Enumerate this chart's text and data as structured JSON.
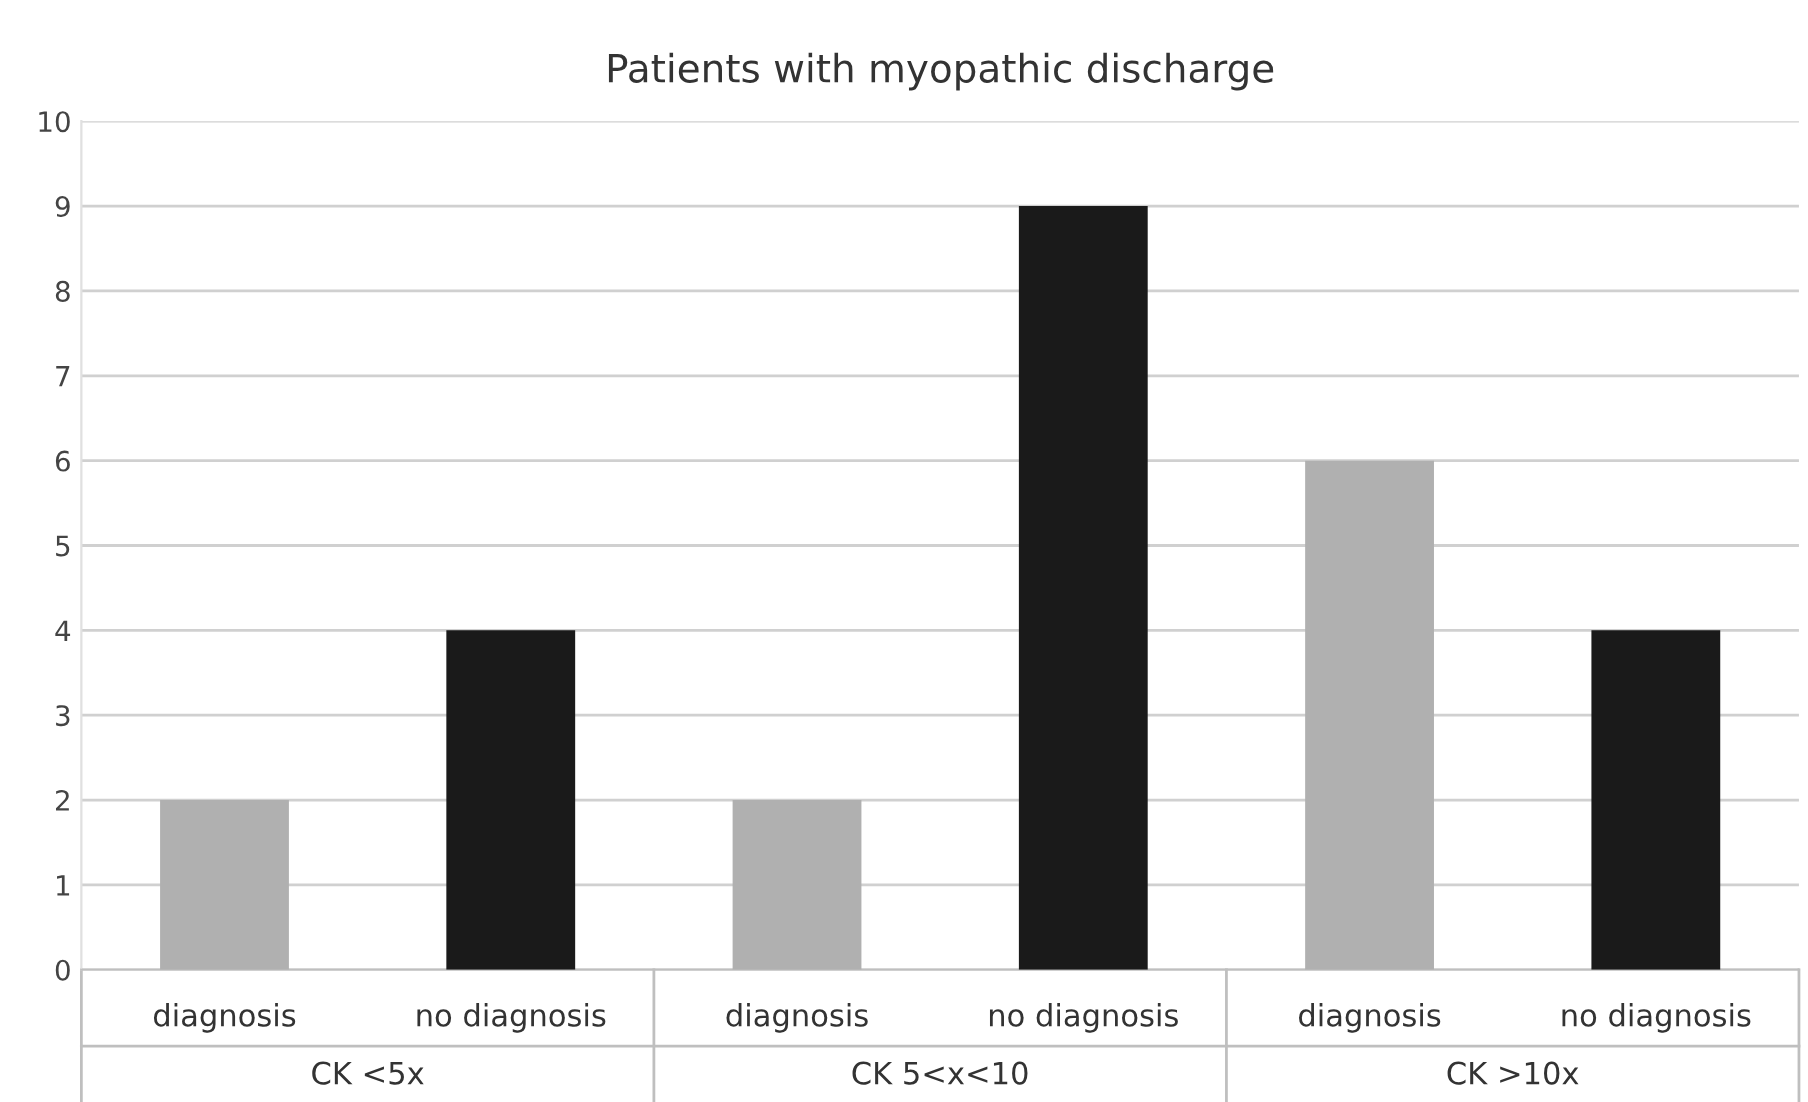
{
  "chart_data": {
    "type": "bar",
    "title": "Patients with myopathic discharge",
    "categories": [
      "diagnosis",
      "no diagnosis",
      "diagnosis",
      "no diagnosis",
      "diagnosis",
      "no diagnosis"
    ],
    "values": [
      2,
      4,
      2,
      9,
      6,
      4
    ],
    "colors": [
      "#b0b0b0",
      "#1a1a1a",
      "#b0b0b0",
      "#1a1a1a",
      "#b0b0b0",
      "#1a1a1a"
    ],
    "annotations": [
      "CK <5x",
      "CK 5<x<10",
      "CK >10x"
    ],
    "ylim": [
      0,
      10
    ],
    "yticks": [
      0,
      1,
      2,
      3,
      4,
      5,
      6,
      7,
      8,
      9,
      10
    ],
    "grid": "y",
    "legend": false
  }
}
